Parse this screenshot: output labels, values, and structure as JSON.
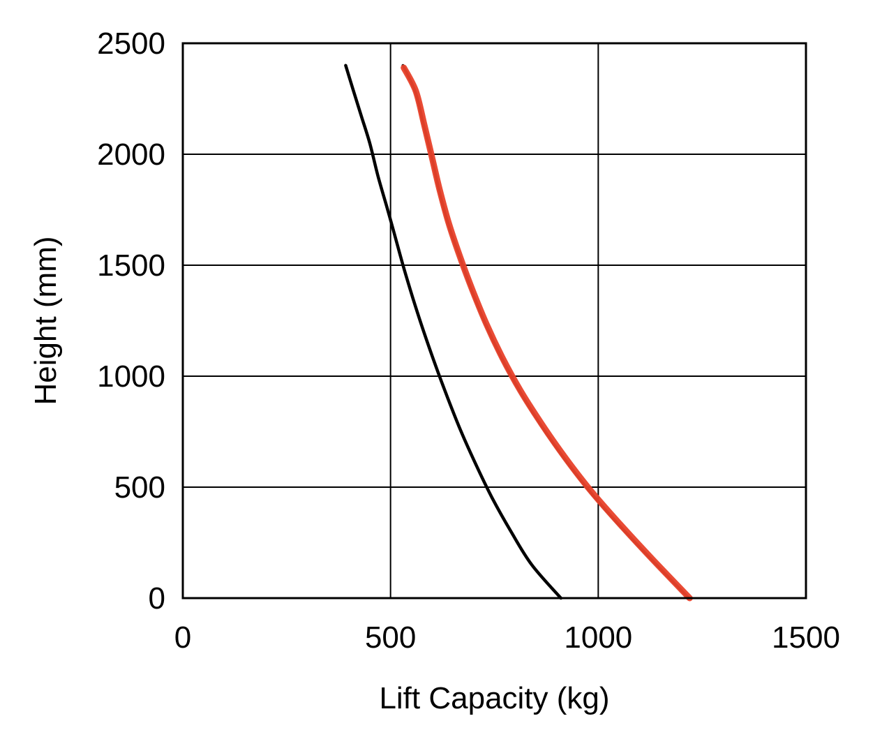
{
  "chart_data": {
    "type": "line",
    "title": "",
    "xlabel": "Lift Capacity (kg)",
    "ylabel": "Height (mm)",
    "xlim": [
      0,
      1500
    ],
    "ylim": [
      0,
      2500
    ],
    "x_ticks": [
      "0",
      "500",
      "1000",
      "1500"
    ],
    "y_ticks": [
      "0",
      "500",
      "1000",
      "1500",
      "2000",
      "2500"
    ],
    "grid": true,
    "legend": "none",
    "series": [
      {
        "color": "#000000",
        "points": [
          [
            910,
            0
          ],
          [
            840,
            150
          ],
          [
            790,
            300
          ],
          [
            745,
            450
          ],
          [
            706,
            600
          ],
          [
            670,
            750
          ],
          [
            638,
            900
          ],
          [
            608,
            1050
          ],
          [
            580,
            1200
          ],
          [
            554,
            1350
          ],
          [
            530,
            1500
          ],
          [
            508,
            1650
          ],
          [
            490,
            1770
          ],
          [
            470,
            1900
          ],
          [
            450,
            2050
          ],
          [
            430,
            2170
          ],
          [
            410,
            2290
          ],
          [
            392,
            2400
          ]
        ]
      },
      {
        "color": "#000000",
        "points": [
          [
            1218,
            0
          ],
          [
            1130,
            170
          ],
          [
            1050,
            330
          ],
          [
            980,
            480
          ],
          [
            918,
            630
          ],
          [
            862,
            780
          ],
          [
            812,
            930
          ],
          [
            768,
            1080
          ],
          [
            730,
            1230
          ],
          [
            697,
            1380
          ],
          [
            668,
            1530
          ],
          [
            640,
            1680
          ],
          [
            618,
            1830
          ],
          [
            600,
            1980
          ],
          [
            580,
            2130
          ],
          [
            560,
            2280
          ],
          [
            530,
            2400
          ]
        ]
      },
      {
        "color": "#e8412a",
        "points": [
          [
            1220,
            0
          ],
          [
            1131,
            174
          ],
          [
            1052,
            334
          ],
          [
            982,
            484
          ],
          [
            920,
            634
          ],
          [
            864,
            784
          ],
          [
            813,
            934
          ],
          [
            769,
            1084
          ],
          [
            731,
            1234
          ],
          [
            698,
            1384
          ],
          [
            668,
            1534
          ],
          [
            641,
            1684
          ],
          [
            619,
            1834
          ],
          [
            600,
            1984
          ],
          [
            581,
            2134
          ],
          [
            561,
            2284
          ],
          [
            532,
            2390
          ]
        ]
      }
    ]
  }
}
